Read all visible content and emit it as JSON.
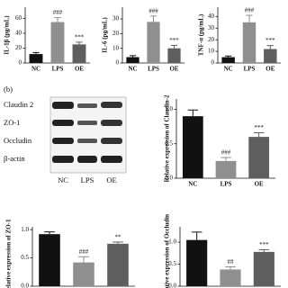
{
  "panel_label": "(b)",
  "blot": {
    "proteins": [
      "Claudin 2",
      "ZO-1",
      "Occludin",
      "β-actin"
    ],
    "lanes": [
      "NC",
      "LPS",
      "OE"
    ]
  },
  "chart_data": [
    {
      "type": "bar",
      "y_label": "IL-1β (pg/mL)",
      "categories": [
        "NC",
        "LPS",
        "OE"
      ],
      "values": [
        12,
        55,
        25
      ],
      "errors": [
        2,
        6,
        3
      ],
      "annotations": [
        null,
        "###",
        "***"
      ],
      "colors": [
        "#111111",
        "#8f8f8f",
        "#5e5e5e"
      ],
      "ylim": [
        0,
        75
      ],
      "yticks": [
        0,
        20,
        40,
        60
      ]
    },
    {
      "type": "bar",
      "y_label": "IL-6 (pg/mL)",
      "categories": [
        "NC",
        "LPS",
        "OE"
      ],
      "values": [
        4,
        28,
        10
      ],
      "errors": [
        1,
        4,
        2
      ],
      "annotations": [
        null,
        "###",
        "***"
      ],
      "colors": [
        "#111111",
        "#8f8f8f",
        "#5e5e5e"
      ],
      "ylim": [
        0,
        38
      ],
      "yticks": [
        0,
        10,
        20,
        30
      ]
    },
    {
      "type": "bar",
      "y_label": "TNF-α (pg/mL)",
      "categories": [
        "NC",
        "LPS",
        "OE"
      ],
      "values": [
        5,
        35,
        12
      ],
      "errors": [
        1,
        6,
        3
      ],
      "annotations": [
        null,
        "###",
        "***"
      ],
      "colors": [
        "#111111",
        "#8f8f8f",
        "#5e5e5e"
      ],
      "ylim": [
        0,
        48
      ],
      "yticks": [
        0,
        10,
        20,
        30,
        40
      ]
    },
    {
      "type": "bar",
      "y_label": "Relative expression of Claudin-2",
      "categories": [
        "NC",
        "LPS",
        "OE"
      ],
      "values": [
        0.9,
        0.25,
        0.6
      ],
      "errors": [
        0.09,
        0.05,
        0.06
      ],
      "annotations": [
        null,
        "###",
        "***"
      ],
      "colors": [
        "#111111",
        "#8f8f8f",
        "#5e5e5e"
      ],
      "ylim": [
        0,
        1.15
      ],
      "yticks": [
        {
          "value": 0,
          "label": "0.0"
        },
        {
          "value": 0.5,
          "label": "0.5"
        },
        {
          "value": 1,
          "label": "1.0"
        }
      ]
    },
    {
      "type": "bar",
      "y_label": "Relative expression of ZO-1",
      "values": [
        0.92,
        0.42,
        0.75
      ],
      "errors": [
        0.04,
        0.1,
        0.03
      ],
      "annotations": [
        null,
        "###",
        "**"
      ],
      "colors": [
        "#111111",
        "#8f8f8f",
        "#5e5e5e"
      ],
      "ylim": [
        0,
        1.05
      ],
      "yticks": [
        {
          "value": 0,
          "label": "0.0"
        },
        {
          "value": 0.5,
          "label": "0.5"
        },
        {
          "value": 1,
          "label": "1.0"
        }
      ]
    },
    {
      "type": "bar",
      "y_label": "Relative expression of Occludin",
      "values": [
        1.05,
        0.38,
        0.78
      ],
      "errors": [
        0.18,
        0.06,
        0.05
      ],
      "annotations": [
        null,
        "##",
        "***"
      ],
      "colors": [
        "#111111",
        "#8f8f8f",
        "#5e5e5e"
      ],
      "ylim": [
        0,
        1.35
      ],
      "yticks": [
        {
          "value": 0,
          "label": "0.0"
        },
        {
          "value": 0.5,
          "label": "0.5"
        },
        {
          "value": 1,
          "label": "1.0"
        }
      ]
    }
  ]
}
